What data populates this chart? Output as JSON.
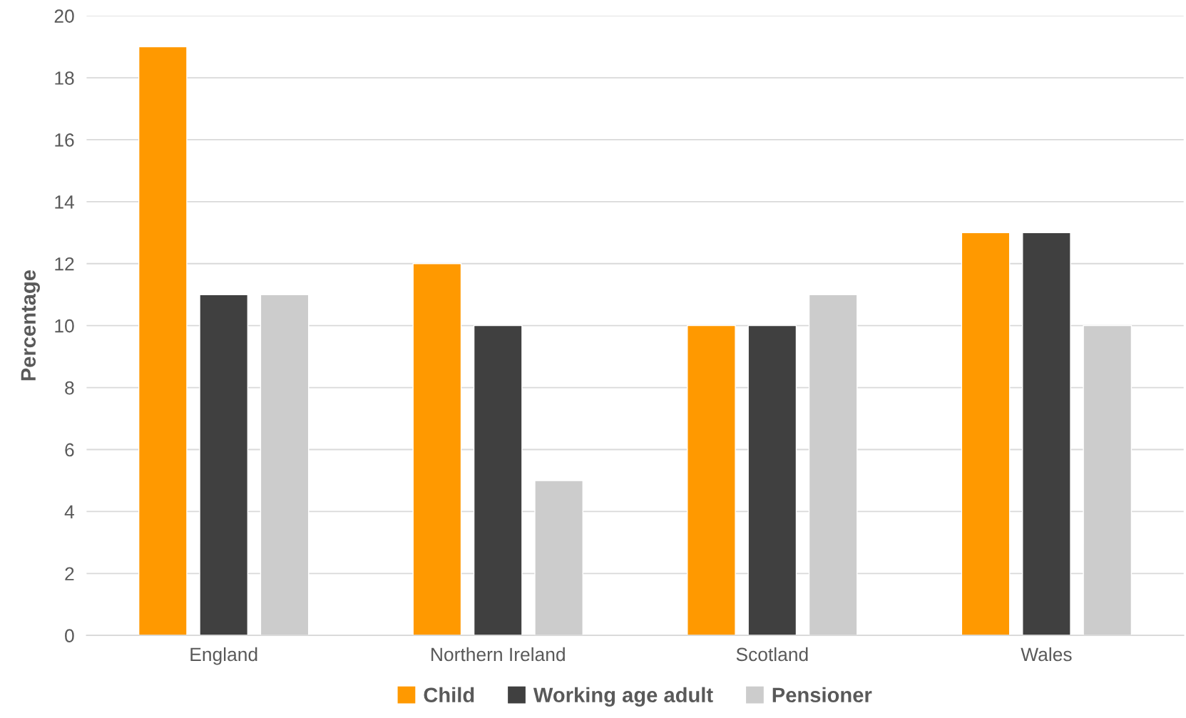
{
  "chart_data": {
    "type": "bar",
    "ylabel": "Percentage",
    "categories": [
      "England",
      "Northern Ireland",
      "Scotland",
      "Wales"
    ],
    "series": [
      {
        "name": "Child",
        "color": "#ff9900",
        "values": [
          19,
          12,
          10,
          13
        ]
      },
      {
        "name": "Working age adult",
        "color": "#404040",
        "values": [
          11,
          10,
          10,
          13
        ]
      },
      {
        "name": "Pensioner",
        "color": "#cccccc",
        "values": [
          11,
          5,
          11,
          10
        ]
      }
    ],
    "ylim": [
      0,
      20
    ],
    "yticks": [
      0,
      2,
      4,
      6,
      8,
      10,
      12,
      14,
      16,
      18,
      20
    ],
    "grid": "y",
    "legend": "bottom"
  }
}
